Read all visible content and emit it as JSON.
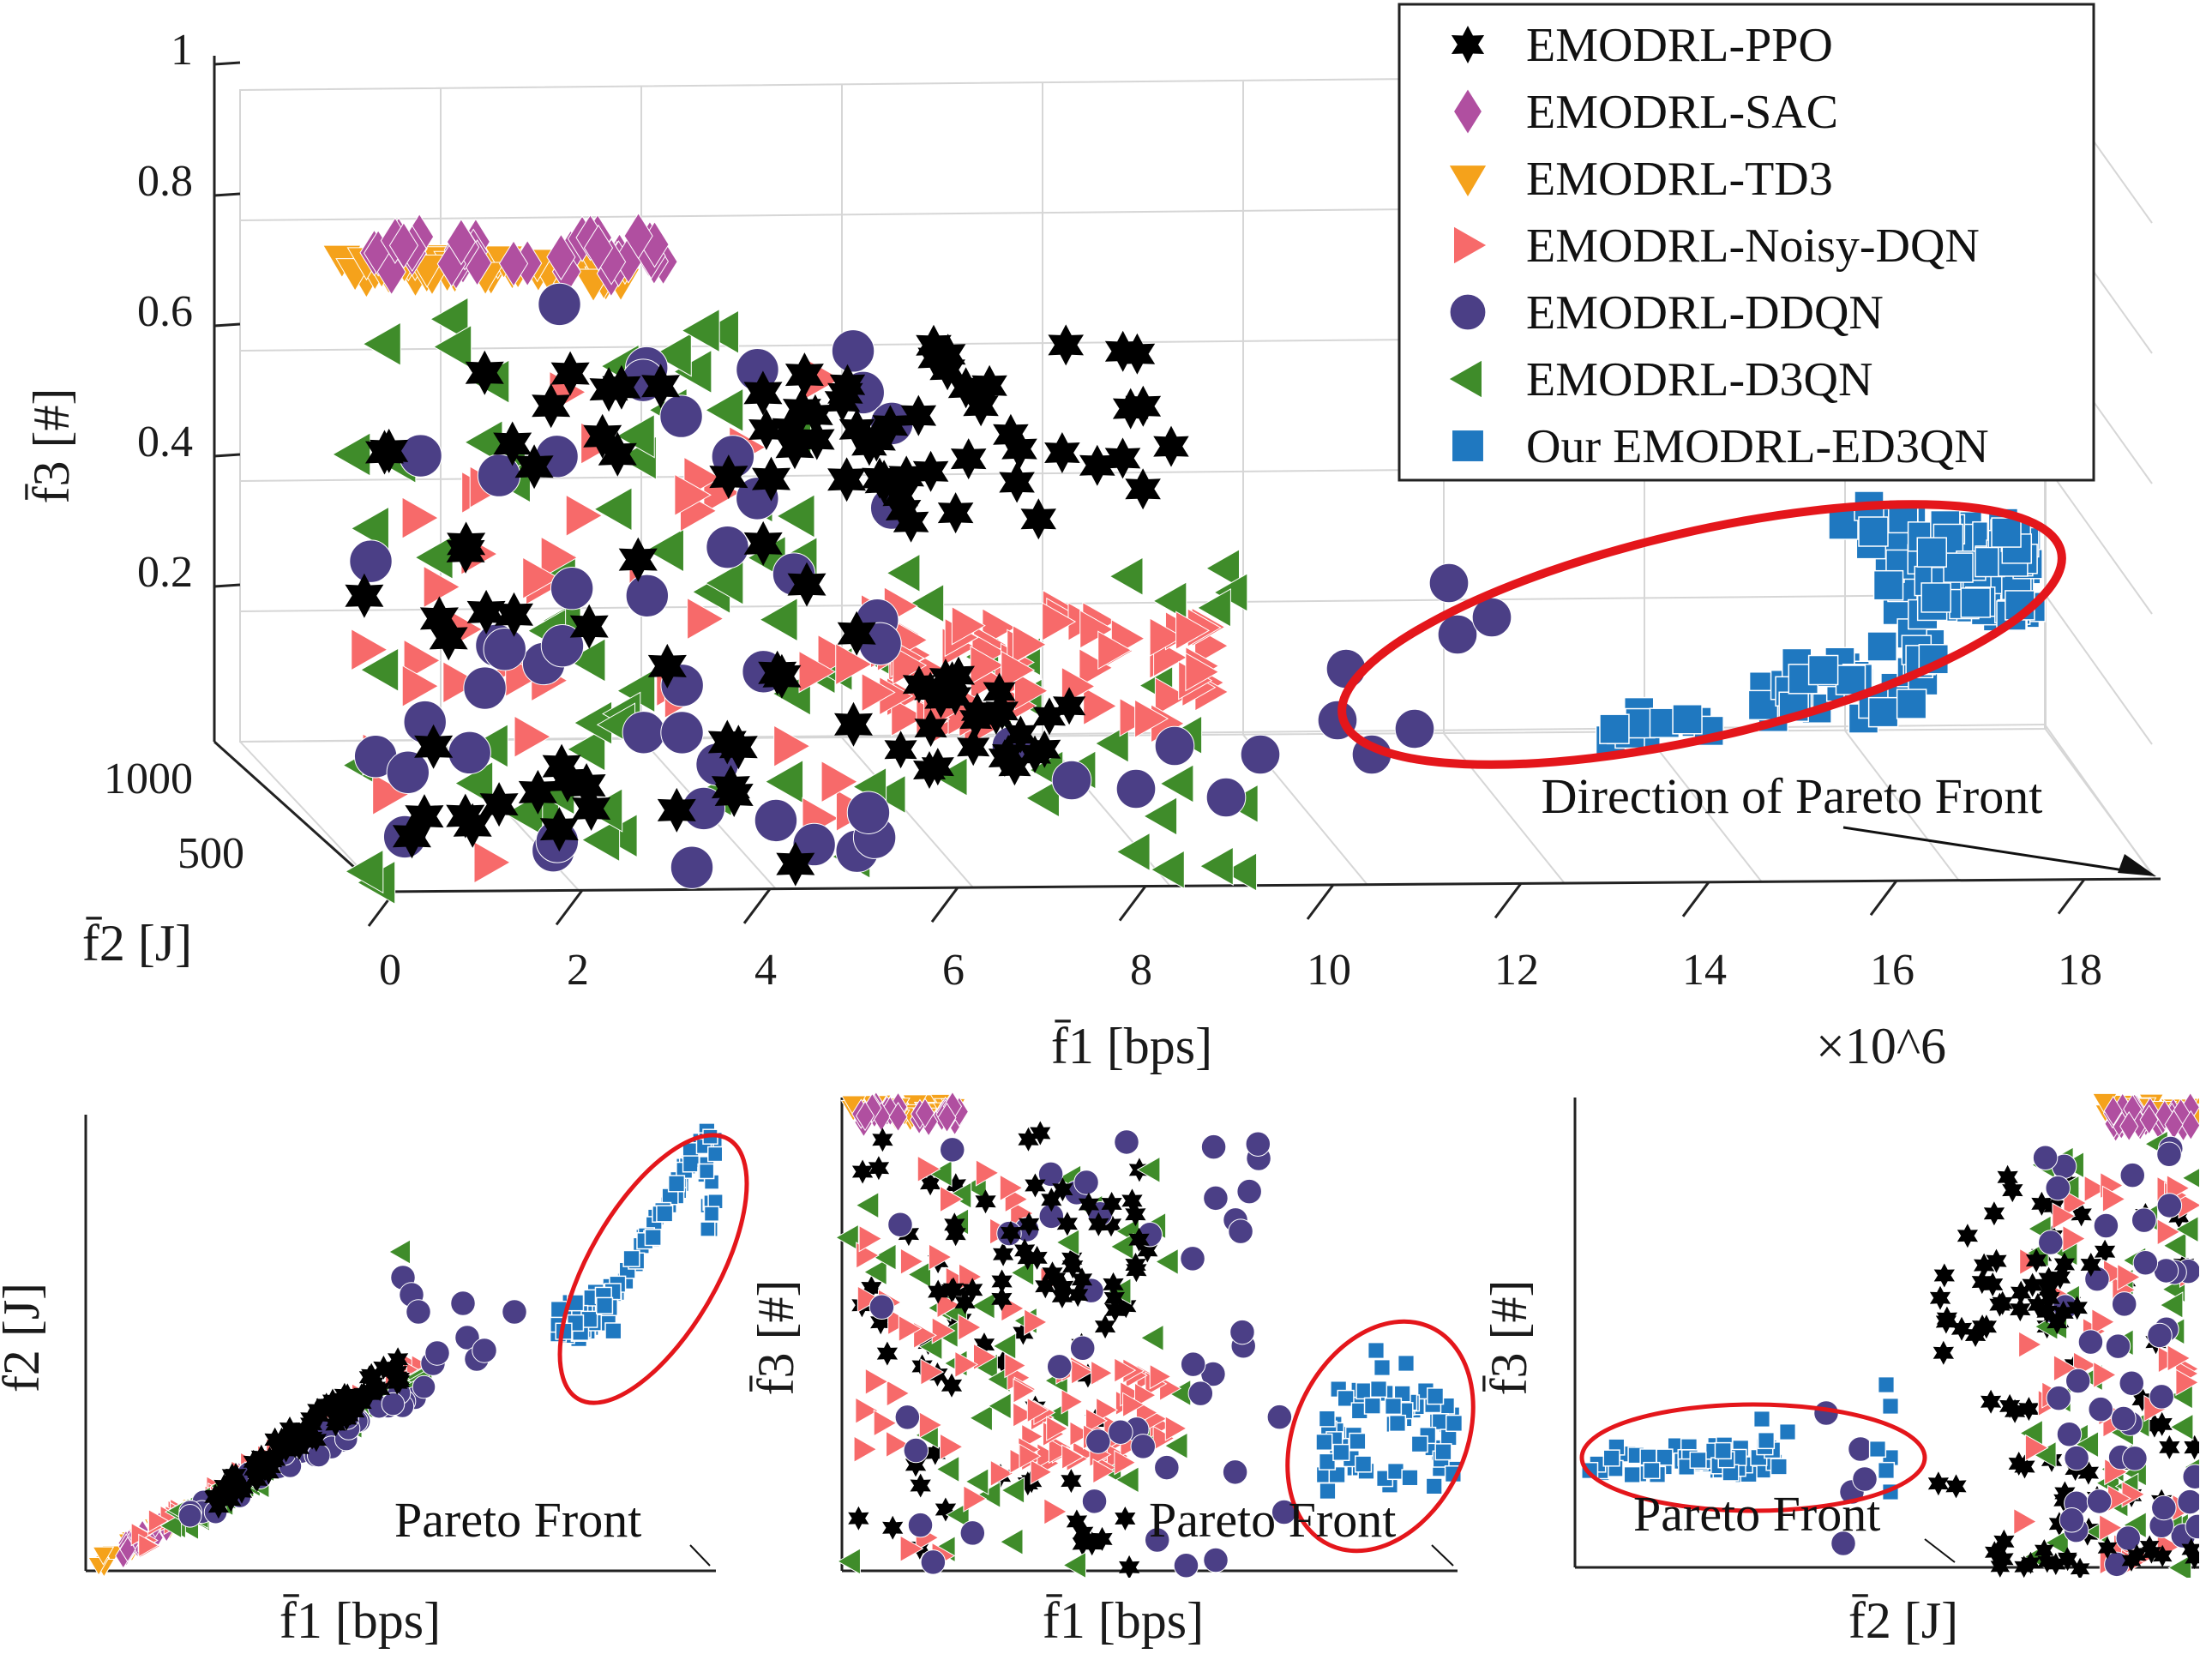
{
  "chart_data": [
    {
      "type": "scatter",
      "view": "3d",
      "title": "",
      "xlabel": "f̄1 [bps]",
      "ylabel": "f̄2 [J]",
      "zlabel": "f̄3 [#]",
      "x_ticks": [
        "0",
        "2",
        "4",
        "6",
        "8",
        "10",
        "12",
        "14",
        "16",
        "18"
      ],
      "x_multiplier": "×10^6",
      "y_ticks": [
        "500",
        "1000"
      ],
      "z_ticks": [
        "0.2",
        "0.4",
        "0.6",
        "0.8",
        "1"
      ],
      "xlim": [
        0,
        18000000
      ],
      "ylim": [
        0,
        1200
      ],
      "zlim": [
        0,
        1
      ],
      "annotation": "Direction of Pareto Front",
      "legend_position": "top-right",
      "series": [
        {
          "name": "EMODRL-PPO",
          "marker": "hexagram",
          "color": "#000000"
        },
        {
          "name": "EMODRL-SAC",
          "marker": "diamond",
          "color": "#b04fa0"
        },
        {
          "name": "EMODRL-TD3",
          "marker": "triangle-down",
          "color": "#f5a21b"
        },
        {
          "name": "EMODRL-Noisy-DQN",
          "marker": "triangle-right",
          "color": "#f76a6a"
        },
        {
          "name": "EMODRL-DDQN",
          "marker": "circle",
          "color": "#4b3f86"
        },
        {
          "name": "EMODRL-D3QN",
          "marker": "triangle-left",
          "color": "#3f8c2a"
        },
        {
          "name": "Our EMODRL-ED3QN",
          "marker": "square",
          "color": "#1f78c0"
        }
      ]
    },
    {
      "type": "scatter",
      "view": "f1-f2 projection",
      "xlabel": "f̄1 [bps]",
      "ylabel": "f̄2 [J]",
      "annotation": "Pareto Front"
    },
    {
      "type": "scatter",
      "view": "f1-f3 projection",
      "xlabel": "f̄1 [bps]",
      "ylabel": "f̄3 [#]",
      "annotation": "Pareto Front"
    },
    {
      "type": "scatter",
      "view": "f2-f3 projection",
      "xlabel": "f̄2 [J]",
      "ylabel": "f̄3 [#]",
      "annotation": "Pareto Front"
    }
  ]
}
